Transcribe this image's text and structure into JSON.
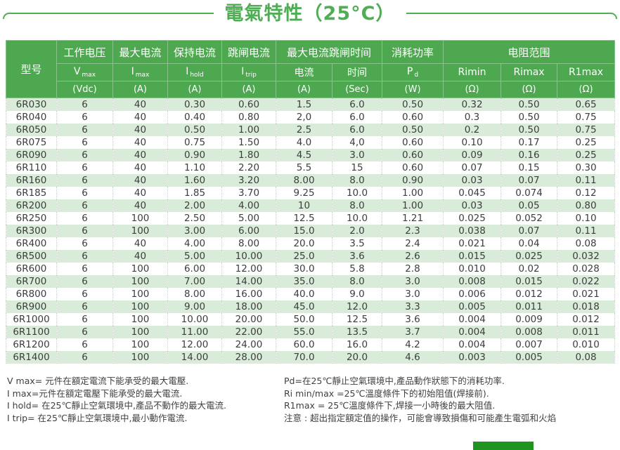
{
  "title": "電氣特性（25°C）",
  "colors": {
    "accent_green": "#4da850",
    "title_green": "#4fae53",
    "stripe_green": "#d9ecd9",
    "footer_bar_green": "#1f9421",
    "header_text": "#ffffff",
    "body_text": "#3d3d3d"
  },
  "table": {
    "group_headers": [
      {
        "label": "型号"
      },
      {
        "label": "工作电压"
      },
      {
        "label": "最大电流"
      },
      {
        "label": "保持电流"
      },
      {
        "label": "跳闸电流"
      },
      {
        "label": "最大电流跳闸时间"
      },
      {
        "label": "消耗功率"
      },
      {
        "label": "电阻范围"
      }
    ],
    "sub_headers": [
      {
        "main": "V",
        "sub": "max"
      },
      {
        "main": "I",
        "sub": "max"
      },
      {
        "main": "I",
        "sub": "hold"
      },
      {
        "main": "I",
        "sub": "trip"
      },
      {
        "main": "电流"
      },
      {
        "main": "时间"
      },
      {
        "main": "P",
        "sub": "d"
      },
      {
        "main": "Rimin"
      },
      {
        "main": "Rimax"
      },
      {
        "main": "R1max"
      }
    ],
    "unit_headers": [
      "(Vdc)",
      "(A)",
      "(A)",
      "(A)",
      "(A)",
      "(Sec)",
      "(W)",
      "(Ω)",
      "(Ω)",
      "(Ω)"
    ],
    "rows": [
      [
        "6R030",
        "6",
        "40",
        "0.30",
        "0.60",
        "1.5",
        "6.0",
        "0.50",
        "0.32",
        "0.50",
        "0.65"
      ],
      [
        "6R040",
        "6",
        "40",
        "0.40",
        "0.80",
        "2,0",
        "6.0",
        "0.60",
        "0.3",
        "0.50",
        "0.75"
      ],
      [
        "6R050",
        "6",
        "40",
        "0.50",
        "1.00",
        "2.5",
        "6.0",
        "0.50",
        "0.2",
        "0.50",
        "0.75"
      ],
      [
        "6R075",
        "6",
        "40",
        "0.75",
        "1.50",
        "4.0",
        "4,0",
        "0.60",
        "0.10",
        "0.17",
        "0.25"
      ],
      [
        "6R090",
        "6",
        "40",
        "0.90",
        "1.80",
        "4.5",
        "3.0",
        "0.60",
        "0.09",
        "0.16",
        "0.25"
      ],
      [
        "6R110",
        "6",
        "40",
        "1.10",
        "2.20",
        "5.5",
        "15",
        "0.60",
        "0.07",
        "0.15",
        "0.30"
      ],
      [
        "6R160",
        "6",
        "40",
        "1.60",
        "3.20",
        "8.00",
        "8.0",
        "0.90",
        "0.03",
        "0.07",
        "0.11"
      ],
      [
        "6R185",
        "6",
        "40",
        "1.85",
        "3.70",
        "9.25",
        "10.0",
        "1.00",
        "0.045",
        "0.074",
        "0.12"
      ],
      [
        "6R200",
        "6",
        "40",
        "2.00",
        "4.00",
        "10",
        "8.0",
        "1.00",
        "0.03",
        "0.05",
        "0.80"
      ],
      [
        "6R250",
        "6",
        "100",
        "2.50",
        "5.00",
        "12.5",
        "10.0",
        "1.21",
        "0.025",
        "0.052",
        "0.10"
      ],
      [
        "6R300",
        "6",
        "100",
        "3.00",
        "6.00",
        "15.0",
        "2.0",
        "2.3",
        "0.038",
        "0.07",
        "0.11"
      ],
      [
        "6R400",
        "6",
        "40",
        "4.00",
        "8.00",
        "20.0",
        "3.5",
        "2.4",
        "0.021",
        "0.04",
        "0.08"
      ],
      [
        "6R500",
        "6",
        "40",
        "5.00",
        "10.00",
        "25.0",
        "3.6",
        "2.6",
        "0.015",
        "0.025",
        "0.032"
      ],
      [
        "6R600",
        "6",
        "100",
        "6.00",
        "12.00",
        "30.0",
        "5.8",
        "2.8",
        "0.010",
        "0.02",
        "0.028"
      ],
      [
        "6R700",
        "6",
        "100",
        "7.00",
        "14.00",
        "35.0",
        "8.0",
        "3.0",
        "0.008",
        "0.015",
        "0.022"
      ],
      [
        "6R800",
        "6",
        "100",
        "8.00",
        "16.00",
        "40.0",
        "9.0",
        "3.0",
        "0.006",
        "0.012",
        "0.021"
      ],
      [
        "6R900",
        "6",
        "100",
        "9.00",
        "18.00",
        "45.0",
        "12.0",
        "3.3",
        "0.005",
        "0.011",
        "0.018"
      ],
      [
        "6R1000",
        "6",
        "100",
        "10.00",
        "20.00",
        "50.0",
        "12.5",
        "3.6",
        "0.004",
        "0.009",
        "0.012"
      ],
      [
        "6R1100",
        "6",
        "100",
        "11.00",
        "22.00",
        "55.0",
        "13.5",
        "3.7",
        "0.004",
        "0.008",
        "0.011"
      ],
      [
        "6R1200",
        "6",
        "100",
        "12.00",
        "24.00",
        "60.0",
        "16.0",
        "4.2",
        "0.004",
        "0.007",
        "0.010"
      ],
      [
        "6R1400",
        "6",
        "100",
        "14.00",
        "28.00",
        "70.0",
        "20.0",
        "4.6",
        "0.003",
        "0.005",
        "0.08"
      ]
    ]
  },
  "notes": {
    "left": [
      "V max= 元件在額定電流下能承受的最大電壓.",
      "I max=元件在額定電壓下能承受的最大電流.",
      "I hold= 在25℃靜止空氣環境中,產品不動作的最大電流.",
      "I trip= 在25℃靜止空氣環境中,最小動作電流."
    ],
    "right": [
      "Pd=在25℃靜止空氣環境中,產品動作狀態下的消耗功率.",
      "Ri min/max  =25℃溫度條件下的初始阻值(焊接前).",
      "R1max  = 25℃溫度條件下,焊接一小時後的最大阻值.",
      "注意 : 超出指定額定值的操作，可能會導致損傷和可能產生電弧和火焰"
    ]
  }
}
